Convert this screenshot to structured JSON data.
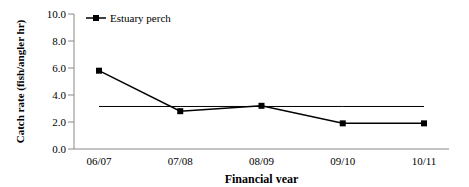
{
  "chart_data": {
    "type": "line",
    "x_label": "Financial year",
    "y_label": "Catch rate (fish/angler hr)",
    "categories": [
      "06/07",
      "07/08",
      "08/09",
      "09/10",
      "10/11"
    ],
    "series": [
      {
        "name": "Estuary perch",
        "color": "#000000",
        "marker": "square",
        "values": [
          5.8,
          2.8,
          3.2,
          1.9,
          1.9
        ]
      }
    ],
    "average": 3.15,
    "ylim": [
      0,
      10
    ],
    "yticks": [
      {
        "value": 0,
        "label": "0.0"
      },
      {
        "value": 2,
        "label": "2.0"
      },
      {
        "value": 4,
        "label": "4.0"
      },
      {
        "value": 6,
        "label": "6.0"
      },
      {
        "value": 8,
        "label": "8.0"
      },
      {
        "value": 10,
        "label": "10.0"
      }
    ],
    "grid": false,
    "legend": "upper left"
  }
}
